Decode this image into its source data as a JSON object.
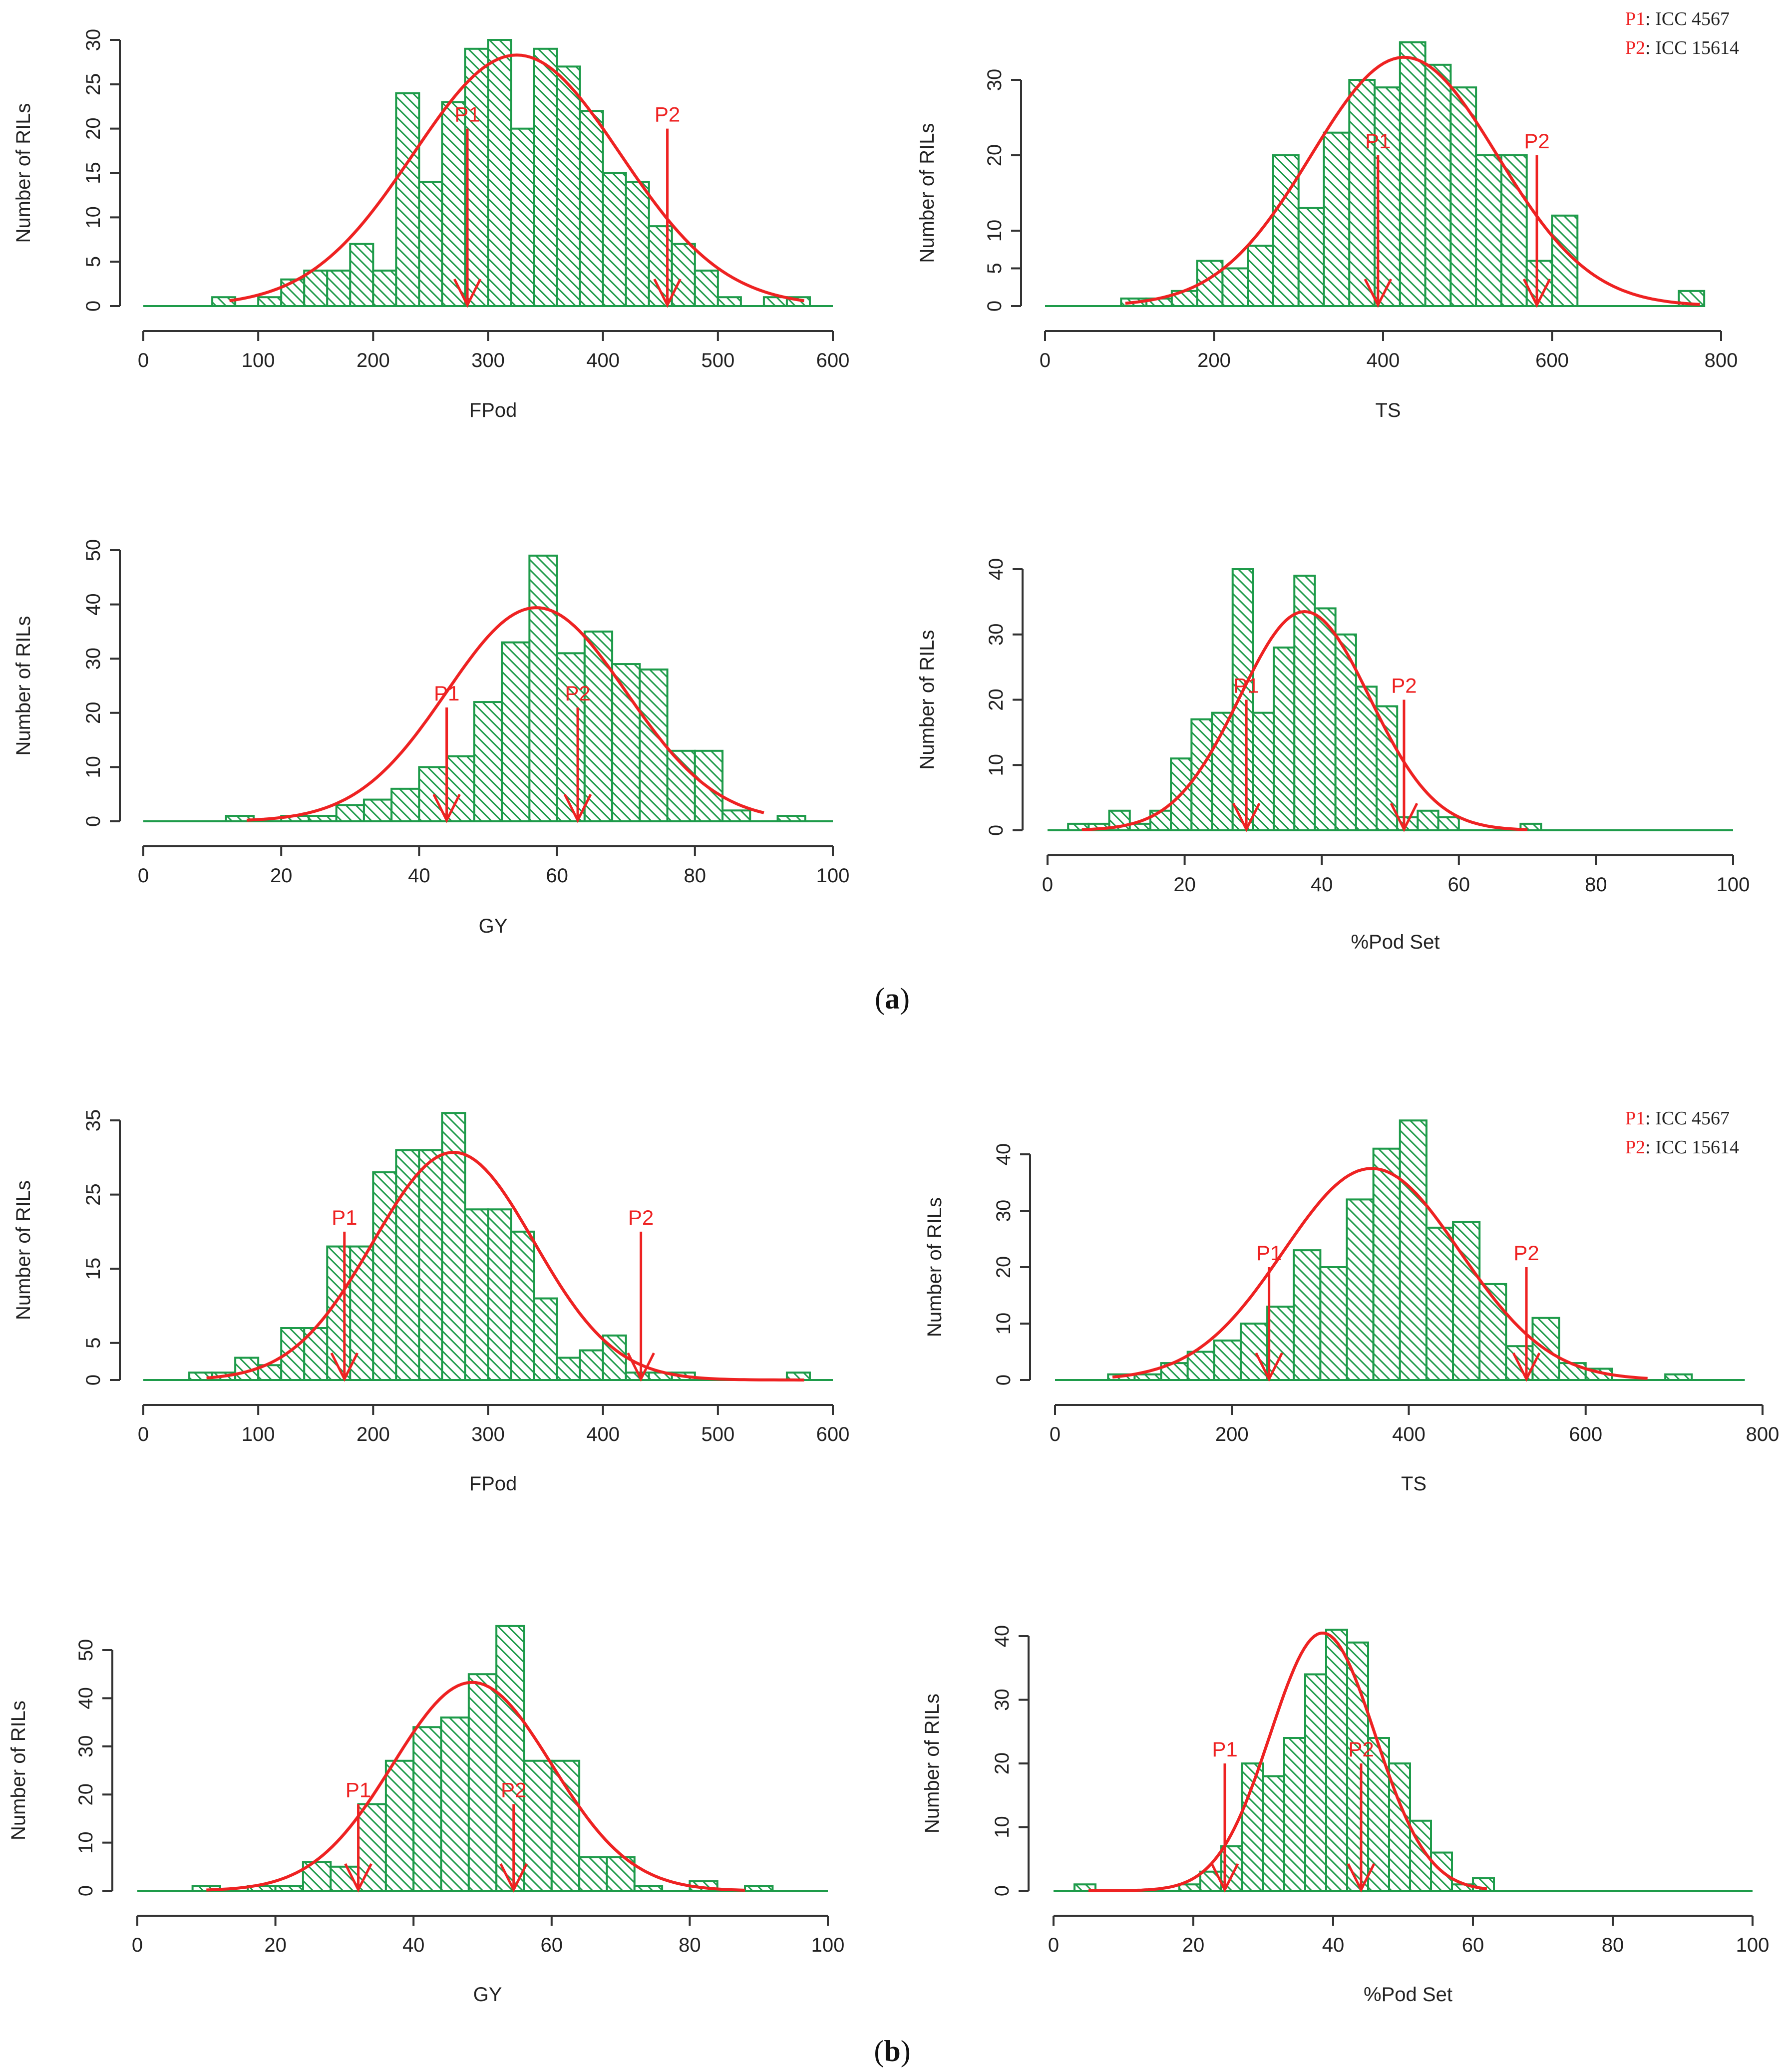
{
  "figure": {
    "panel_labels": [
      {
        "id": "a",
        "open": "(",
        "letter": "a",
        "close": ")"
      },
      {
        "id": "b",
        "open": "(",
        "letter": "b",
        "close": ")"
      }
    ],
    "legends": [
      {
        "panel": "a",
        "entries": [
          {
            "key": "P1",
            "sep": ": ",
            "value": "ICC 4567"
          },
          {
            "key": "P2",
            "sep": ": ",
            "value": "ICC 15614"
          }
        ]
      },
      {
        "panel": "b",
        "entries": [
          {
            "key": "P1",
            "sep": ": ",
            "value": "ICC 4567"
          },
          {
            "key": "P2",
            "sep": ": ",
            "value": "ICC 15614"
          }
        ]
      }
    ],
    "colors": {
      "bars": "#1e9b4a",
      "curve": "#ee2222",
      "arrows": "#ee2222"
    }
  },
  "chart_data": [
    {
      "id": "a-fpod",
      "panel": "a",
      "type": "bar",
      "title": "",
      "xlabel": "FPod",
      "ylabel": "Number of RILs",
      "xlim": [
        0,
        600
      ],
      "ylim": [
        0,
        30
      ],
      "xticks": [
        0,
        100,
        200,
        300,
        400,
        500,
        600
      ],
      "yticks": [
        0,
        5,
        10,
        15,
        20,
        25,
        30
      ],
      "bin_start": 60,
      "bin_width": 20,
      "baseline_range": [
        0,
        600
      ],
      "values": [
        1,
        0,
        1,
        3,
        4,
        4,
        7,
        4,
        24,
        14,
        23,
        29,
        30,
        20,
        29,
        27,
        22,
        15,
        14,
        9,
        7,
        4,
        1,
        0,
        1,
        1
      ],
      "normal": {
        "mean": 325,
        "sd": 90,
        "peak": 28.3,
        "range": [
          75,
          575
        ]
      },
      "markers": [
        {
          "label": "P1",
          "x": 282,
          "top": 20
        },
        {
          "label": "P2",
          "x": 456,
          "top": 20
        }
      ]
    },
    {
      "id": "a-ts",
      "panel": "a",
      "type": "bar",
      "title": "",
      "xlabel": "TS",
      "ylabel": "Number of RILs",
      "xlim": [
        0,
        800
      ],
      "ylim": [
        0,
        30
      ],
      "xticks": [
        0,
        200,
        400,
        600,
        800
      ],
      "yticks": [
        0,
        5,
        10,
        20,
        30
      ],
      "bin_start": 90,
      "bin_width": 30,
      "baseline_range": [
        0,
        780
      ],
      "values": [
        1,
        1,
        2,
        6,
        5,
        8,
        20,
        13,
        23,
        30,
        29,
        35,
        32,
        29,
        20,
        20,
        6,
        12,
        0,
        0,
        0,
        0,
        2
      ],
      "normal": {
        "mean": 425,
        "sd": 110,
        "peak": 33,
        "range": [
          95,
          775
        ]
      },
      "markers": [
        {
          "label": "P1",
          "x": 394,
          "top": 20
        },
        {
          "label": "P2",
          "x": 582,
          "top": 20
        }
      ]
    },
    {
      "id": "a-gy",
      "panel": "a",
      "type": "bar",
      "title": "",
      "xlabel": "GY",
      "ylabel": "Number of RILs",
      "xlim": [
        0,
        100
      ],
      "ylim": [
        0,
        50
      ],
      "xticks": [
        0,
        20,
        40,
        60,
        80,
        100
      ],
      "yticks": [
        0,
        10,
        20,
        30,
        40,
        50
      ],
      "bin_start": 12,
      "bin_width": 4,
      "baseline_range": [
        0,
        100
      ],
      "values": [
        1,
        0,
        1,
        1,
        3,
        4,
        6,
        10,
        12,
        22,
        33,
        49,
        31,
        35,
        29,
        28,
        13,
        13,
        2,
        0,
        1
      ],
      "normal": {
        "mean": 57,
        "sd": 13,
        "peak": 39.4,
        "range": [
          15,
          90
        ]
      },
      "markers": [
        {
          "label": "P1",
          "x": 44,
          "top": 21
        },
        {
          "label": "P2",
          "x": 63,
          "top": 21
        }
      ]
    },
    {
      "id": "a-podset",
      "panel": "a",
      "type": "bar",
      "title": "",
      "xlabel": "%Pod Set",
      "ylabel": "Number of RILs",
      "xlim": [
        0,
        100
      ],
      "ylim": [
        0,
        40
      ],
      "xticks": [
        0,
        20,
        40,
        60,
        80,
        100
      ],
      "yticks": [
        0,
        10,
        20,
        30,
        40
      ],
      "bin_start": 3,
      "bin_width": 3,
      "baseline_range": [
        0,
        100
      ],
      "values": [
        1,
        1,
        3,
        1,
        3,
        11,
        17,
        18,
        40,
        18,
        28,
        39,
        34,
        30,
        22,
        19,
        2,
        3,
        2,
        0,
        0,
        0,
        1
      ],
      "normal": {
        "mean": 37.5,
        "sd": 9.5,
        "peak": 33.5,
        "range": [
          5,
          70
        ]
      },
      "markers": [
        {
          "label": "P1",
          "x": 29,
          "top": 20
        },
        {
          "label": "P2",
          "x": 52,
          "top": 20
        }
      ]
    },
    {
      "id": "b-fpod",
      "panel": "b",
      "type": "bar",
      "title": "",
      "xlabel": "FPod",
      "ylabel": "Number of RILs",
      "xlim": [
        0,
        600
      ],
      "ylim": [
        0,
        35
      ],
      "xticks": [
        0,
        100,
        200,
        300,
        400,
        500,
        600
      ],
      "yticks": [
        0,
        5,
        15,
        25,
        35
      ],
      "bin_start": 40,
      "bin_width": 20,
      "baseline_range": [
        0,
        600
      ],
      "values": [
        1,
        1,
        3,
        2,
        7,
        7,
        18,
        18,
        28,
        31,
        31,
        36,
        23,
        23,
        20,
        11,
        3,
        4,
        6,
        1,
        1,
        1,
        0,
        0,
        0,
        0,
        1
      ],
      "normal": {
        "mean": 270,
        "sd": 70,
        "peak": 30.7,
        "range": [
          55,
          575
        ]
      },
      "markers": [
        {
          "label": "P1",
          "x": 175,
          "top": 20
        },
        {
          "label": "P2",
          "x": 433,
          "top": 20
        }
      ]
    },
    {
      "id": "b-ts",
      "panel": "b",
      "type": "bar",
      "title": "",
      "xlabel": "TS",
      "ylabel": "Number of RILs",
      "xlim": [
        0,
        800
      ],
      "ylim": [
        0,
        40
      ],
      "xticks": [
        0,
        200,
        400,
        600,
        800
      ],
      "yticks": [
        0,
        10,
        20,
        30,
        40
      ],
      "bin_start": 60,
      "bin_width": 30,
      "baseline_range": [
        0,
        780
      ],
      "values": [
        1,
        1,
        3,
        5,
        7,
        10,
        13,
        23,
        20,
        32,
        41,
        46,
        27,
        28,
        17,
        6,
        11,
        3,
        2,
        0,
        0,
        1
      ],
      "normal": {
        "mean": 358,
        "sd": 100,
        "peak": 37.5,
        "range": [
          65,
          670
        ]
      },
      "markers": [
        {
          "label": "P1",
          "x": 242,
          "top": 20
        },
        {
          "label": "P2",
          "x": 533,
          "top": 20
        }
      ]
    },
    {
      "id": "b-gy",
      "panel": "b",
      "type": "bar",
      "title": "",
      "xlabel": "GY",
      "ylabel": "Number of RILs",
      "xlim": [
        0,
        100
      ],
      "ylim": [
        0,
        50
      ],
      "xticks": [
        0,
        20,
        40,
        60,
        80,
        100
      ],
      "yticks": [
        0,
        10,
        20,
        30,
        40,
        50
      ],
      "bin_start": 8,
      "bin_width": 4,
      "baseline_range": [
        0,
        100
      ],
      "values": [
        1,
        0,
        1,
        1,
        6,
        5,
        18,
        27,
        34,
        36,
        45,
        55,
        27,
        27,
        7,
        7,
        1,
        0,
        2,
        0,
        1
      ],
      "normal": {
        "mean": 48.5,
        "sd": 11.5,
        "peak": 43.3,
        "range": [
          10,
          88
        ]
      },
      "markers": [
        {
          "label": "P1",
          "x": 32,
          "top": 18
        },
        {
          "label": "P2",
          "x": 54.5,
          "top": 18
        }
      ]
    },
    {
      "id": "b-podset",
      "panel": "b",
      "type": "bar",
      "title": "",
      "xlabel": "%Pod Set",
      "ylabel": "Number of RILs",
      "xlim": [
        0,
        100
      ],
      "ylim": [
        0,
        40
      ],
      "xticks": [
        0,
        20,
        40,
        60,
        80,
        100
      ],
      "yticks": [
        0,
        10,
        20,
        30,
        40
      ],
      "bin_start": 3,
      "bin_width": 3,
      "baseline_range": [
        0,
        100
      ],
      "values": [
        1,
        0,
        0,
        0,
        0,
        1,
        3,
        7,
        20,
        18,
        24,
        34,
        41,
        39,
        24,
        20,
        11,
        6,
        1,
        2
      ],
      "normal": {
        "mean": 38.5,
        "sd": 7.5,
        "peak": 40.5,
        "range": [
          5,
          62
        ]
      },
      "markers": [
        {
          "label": "P1",
          "x": 24.5,
          "top": 20
        },
        {
          "label": "P2",
          "x": 44,
          "top": 20
        }
      ]
    }
  ]
}
